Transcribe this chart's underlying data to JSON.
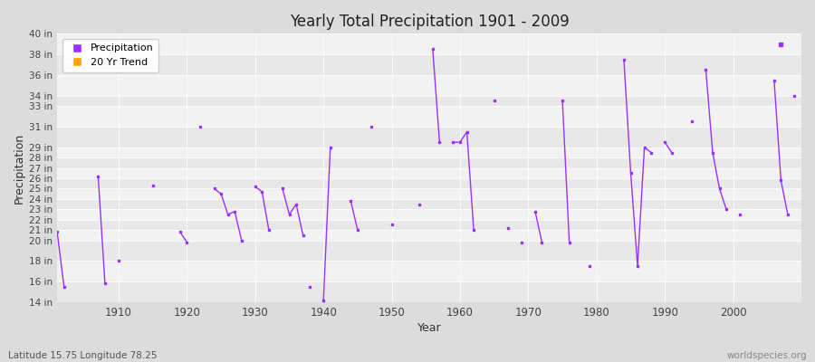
{
  "title": "Yearly Total Precipitation 1901 - 2009",
  "xlabel": "Year",
  "ylabel": "Precipitation",
  "lat_lon_label": "Latitude 15.75 Longitude 78.25",
  "watermark": "worldspecies.org",
  "ylim": [
    14,
    40
  ],
  "xlim": [
    1901,
    2010
  ],
  "ytick_positions": [
    14,
    16,
    18,
    20,
    21,
    22,
    23,
    24,
    25,
    26,
    27,
    28,
    29,
    31,
    33,
    34,
    36,
    38,
    40
  ],
  "xtick_positions": [
    1910,
    1920,
    1930,
    1940,
    1950,
    1960,
    1970,
    1980,
    1990,
    2000
  ],
  "precip_color": "#9B30FF",
  "trend_color": "#FFA500",
  "fig_bg_color": "#DCDCDC",
  "plot_bg_color": "#EBEBEB",
  "grid_color": "#FFFFFF",
  "connected_segments": [
    [
      1901,
      20.8
    ],
    [
      1902,
      15.5
    ],
    null,
    [
      1907,
      26.2
    ],
    [
      1908,
      15.8
    ],
    null,
    [
      1910,
      18.0
    ],
    null,
    [
      1915,
      25.3
    ],
    null,
    [
      1919,
      20.8
    ],
    [
      1920,
      19.8
    ],
    null,
    [
      1922,
      31.0
    ],
    null,
    [
      1924,
      25.0
    ],
    [
      1925,
      24.5
    ],
    [
      1926,
      22.5
    ],
    [
      1927,
      22.8
    ],
    [
      1928,
      20.0
    ],
    null,
    [
      1930,
      25.2
    ],
    [
      1931,
      24.7
    ],
    [
      1932,
      21.0
    ],
    null,
    [
      1934,
      25.0
    ],
    [
      1935,
      22.5
    ],
    [
      1936,
      23.5
    ],
    [
      1937,
      20.5
    ],
    null,
    [
      1938,
      15.5
    ],
    null,
    [
      1940,
      14.2
    ],
    [
      1941,
      29.0
    ],
    null,
    [
      1944,
      23.8
    ],
    [
      1945,
      21.0
    ],
    null,
    [
      1947,
      31.0
    ],
    null,
    [
      1950,
      21.5
    ],
    null,
    [
      1954,
      23.5
    ],
    null,
    [
      1956,
      38.5
    ],
    [
      1957,
      29.5
    ],
    null,
    [
      1959,
      29.5
    ],
    [
      1960,
      29.5
    ],
    [
      1961,
      30.5
    ],
    [
      1962,
      21.0
    ],
    null,
    [
      1965,
      33.5
    ],
    null,
    [
      1967,
      21.2
    ],
    null,
    [
      1969,
      19.8
    ],
    null,
    [
      1971,
      22.8
    ],
    [
      1972,
      19.8
    ],
    null,
    [
      1975,
      33.5
    ],
    [
      1976,
      19.8
    ],
    null,
    [
      1979,
      17.5
    ],
    null,
    [
      1984,
      37.5
    ],
    [
      1985,
      26.5
    ],
    [
      1986,
      17.5
    ],
    [
      1987,
      29.0
    ],
    [
      1988,
      28.5
    ],
    null,
    [
      1990,
      29.5
    ],
    [
      1991,
      28.5
    ],
    null,
    [
      1994,
      31.5
    ],
    null,
    [
      1996,
      36.5
    ],
    [
      1997,
      28.5
    ],
    [
      1998,
      25.0
    ],
    [
      1999,
      23.0
    ],
    null,
    [
      2001,
      22.5
    ],
    null,
    [
      2006,
      35.5
    ],
    [
      2007,
      25.8
    ],
    [
      2008,
      22.5
    ],
    null,
    [
      2009,
      34.0
    ]
  ],
  "isolated_dot": {
    "year": 2007,
    "value": 39.0
  }
}
